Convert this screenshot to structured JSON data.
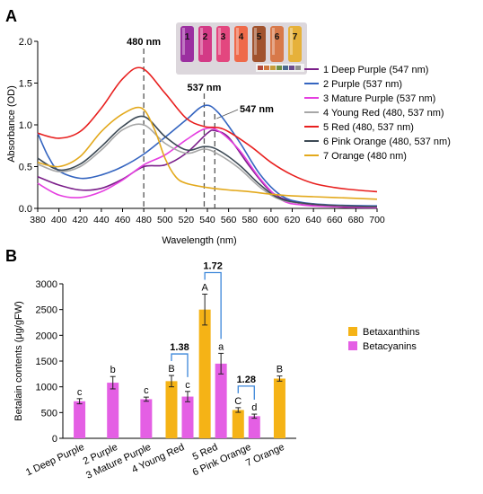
{
  "panel_a": {
    "label": "A",
    "markers": [
      "480 nm",
      "537 nm",
      "547 nm"
    ],
    "vial_numbers": [
      "1",
      "2",
      "3",
      "4",
      "5",
      "6",
      "7"
    ],
    "vial_colors": [
      "#9b2fa0",
      "#d33a86",
      "#e3477f",
      "#ef6a4a",
      "#a1532e",
      "#d8794a",
      "#e6b13a"
    ],
    "strip_colors": [
      "#b34b3b",
      "#d0773c",
      "#c79c3a",
      "#6f8f44",
      "#4a6b8f",
      "#6d4c8f",
      "#8f8f8f"
    ]
  },
  "panel_b": {
    "label": "B",
    "ratios": [
      "1.38",
      "1.72",
      "1.28"
    ],
    "letters": {
      "betacyanins": [
        "c",
        "b",
        "c",
        "c",
        "a",
        "d"
      ],
      "betaxanthins": [
        "B",
        "A",
        "C",
        "B"
      ]
    }
  },
  "chart_data": [
    {
      "type": "line",
      "xlabel": "Wavelength (nm)",
      "ylabel": "Absorbance (OD)",
      "xlim": [
        380,
        700
      ],
      "ylim": [
        0,
        2.0
      ],
      "xticks": [
        380,
        400,
        420,
        440,
        460,
        480,
        500,
        520,
        540,
        560,
        580,
        600,
        620,
        640,
        660,
        680,
        700
      ],
      "yticks": [
        "0.0",
        "0.5",
        "1.0",
        "1.5",
        "2.0"
      ],
      "legend_position": "right",
      "series": [
        {
          "name": "1 Deep Purple (547 nm)",
          "color": "#7b1f8a",
          "points": [
            [
              380,
              0.38
            ],
            [
              400,
              0.28
            ],
            [
              420,
              0.22
            ],
            [
              440,
              0.24
            ],
            [
              460,
              0.35
            ],
            [
              480,
              0.5
            ],
            [
              500,
              0.52
            ],
            [
              520,
              0.66
            ],
            [
              540,
              0.9
            ],
            [
              547,
              0.93
            ],
            [
              560,
              0.85
            ],
            [
              580,
              0.5
            ],
            [
              600,
              0.2
            ],
            [
              620,
              0.08
            ],
            [
              640,
              0.04
            ],
            [
              660,
              0.02
            ],
            [
              680,
              0.01
            ],
            [
              700,
              0.01
            ]
          ]
        },
        {
          "name": "2 Purple (537 nm)",
          "color": "#3565c0",
          "points": [
            [
              380,
              0.9
            ],
            [
              390,
              0.62
            ],
            [
              400,
              0.45
            ],
            [
              420,
              0.36
            ],
            [
              440,
              0.4
            ],
            [
              460,
              0.5
            ],
            [
              480,
              0.65
            ],
            [
              500,
              0.85
            ],
            [
              520,
              1.06
            ],
            [
              537,
              1.23
            ],
            [
              550,
              1.15
            ],
            [
              570,
              0.8
            ],
            [
              590,
              0.4
            ],
            [
              610,
              0.15
            ],
            [
              630,
              0.07
            ],
            [
              660,
              0.04
            ],
            [
              700,
              0.03
            ]
          ]
        },
        {
          "name": "3 Mature Purple (537 nm)",
          "color": "#e53fe0",
          "points": [
            [
              380,
              0.3
            ],
            [
              400,
              0.16
            ],
            [
              420,
              0.13
            ],
            [
              440,
              0.2
            ],
            [
              460,
              0.34
            ],
            [
              480,
              0.52
            ],
            [
              500,
              0.64
            ],
            [
              520,
              0.82
            ],
            [
              537,
              0.95
            ],
            [
              550,
              0.93
            ],
            [
              570,
              0.7
            ],
            [
              590,
              0.35
            ],
            [
              610,
              0.1
            ],
            [
              630,
              0.04
            ],
            [
              660,
              0.02
            ],
            [
              700,
              0.01
            ]
          ]
        },
        {
          "name": "4 Young Red (480, 537 nm)",
          "color": "#a7a7a7",
          "points": [
            [
              380,
              0.53
            ],
            [
              400,
              0.44
            ],
            [
              420,
              0.5
            ],
            [
              440,
              0.7
            ],
            [
              460,
              0.94
            ],
            [
              480,
              1.0
            ],
            [
              500,
              0.78
            ],
            [
              520,
              0.66
            ],
            [
              537,
              0.71
            ],
            [
              550,
              0.65
            ],
            [
              570,
              0.48
            ],
            [
              590,
              0.25
            ],
            [
              610,
              0.1
            ],
            [
              640,
              0.05
            ],
            [
              670,
              0.03
            ],
            [
              700,
              0.02
            ]
          ]
        },
        {
          "name": "5 Red (480, 537 nm)",
          "color": "#e8201f",
          "points": [
            [
              380,
              0.9
            ],
            [
              400,
              0.84
            ],
            [
              420,
              0.92
            ],
            [
              440,
              1.2
            ],
            [
              460,
              1.55
            ],
            [
              478,
              1.68
            ],
            [
              500,
              1.38
            ],
            [
              520,
              1.08
            ],
            [
              537,
              0.98
            ],
            [
              555,
              0.95
            ],
            [
              580,
              0.75
            ],
            [
              600,
              0.55
            ],
            [
              620,
              0.4
            ],
            [
              640,
              0.3
            ],
            [
              660,
              0.25
            ],
            [
              680,
              0.22
            ],
            [
              700,
              0.2
            ]
          ]
        },
        {
          "name": "6 Pink Orange (480, 537 nm)",
          "color": "#3d4a55",
          "points": [
            [
              380,
              0.6
            ],
            [
              400,
              0.46
            ],
            [
              420,
              0.53
            ],
            [
              440,
              0.74
            ],
            [
              460,
              0.98
            ],
            [
              480,
              1.1
            ],
            [
              500,
              0.86
            ],
            [
              520,
              0.7
            ],
            [
              537,
              0.74
            ],
            [
              550,
              0.7
            ],
            [
              570,
              0.52
            ],
            [
              590,
              0.28
            ],
            [
              610,
              0.11
            ],
            [
              640,
              0.05
            ],
            [
              670,
              0.03
            ],
            [
              700,
              0.02
            ]
          ]
        },
        {
          "name": "7 Orange (480 nm)",
          "color": "#e3a91c",
          "points": [
            [
              380,
              0.55
            ],
            [
              400,
              0.5
            ],
            [
              420,
              0.62
            ],
            [
              440,
              0.92
            ],
            [
              460,
              1.13
            ],
            [
              478,
              1.2
            ],
            [
              490,
              0.95
            ],
            [
              500,
              0.6
            ],
            [
              510,
              0.38
            ],
            [
              520,
              0.3
            ],
            [
              540,
              0.25
            ],
            [
              560,
              0.22
            ],
            [
              580,
              0.2
            ],
            [
              600,
              0.17
            ],
            [
              620,
              0.15
            ],
            [
              640,
              0.14
            ],
            [
              660,
              0.13
            ],
            [
              680,
              0.12
            ],
            [
              700,
              0.11
            ]
          ]
        }
      ]
    },
    {
      "type": "bar",
      "ylabel": "Betalain contents (μg/gFW)",
      "ylim": [
        0,
        3000
      ],
      "yticks": [
        "0",
        "500",
        "1000",
        "1500",
        "2000",
        "2500",
        "3000"
      ],
      "categories": [
        "1 Deep Purple",
        "2 Purple",
        "3 Mature Purple",
        "4 Young Red",
        "5 Red",
        "6 Pink Orange",
        "7 Orange"
      ],
      "legend_position": "right",
      "series": [
        {
          "name": "Betaxanthins",
          "color": "#f5b316",
          "values": [
            null,
            null,
            null,
            1110,
            2500,
            550,
            1160
          ],
          "errors": [
            null,
            null,
            null,
            110,
            300,
            45,
            50
          ]
        },
        {
          "name": "Betacyanins",
          "color": "#e45fe4",
          "values": [
            720,
            1080,
            760,
            810,
            1450,
            430,
            null
          ],
          "errors": [
            50,
            120,
            40,
            100,
            200,
            40,
            null
          ]
        }
      ]
    }
  ]
}
